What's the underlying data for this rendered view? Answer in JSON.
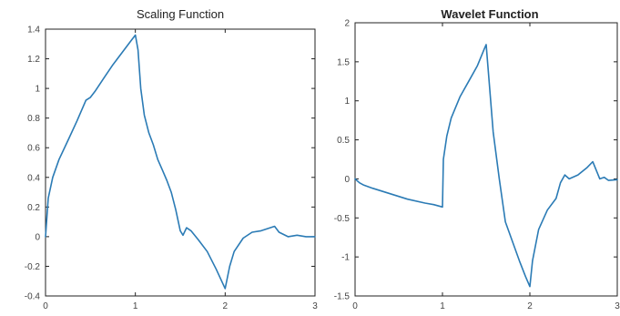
{
  "line_color": "#2b7bb5",
  "chart_data": [
    {
      "type": "line",
      "title": "Scaling Function",
      "xlabel": "",
      "ylabel": "",
      "xlim": [
        0,
        3
      ],
      "ylim": [
        -0.4,
        1.4
      ],
      "xticks": [
        0,
        1,
        2,
        3
      ],
      "xtick_labels": [
        "0",
        "1",
        "2",
        "3"
      ],
      "yticks": [
        -0.4,
        -0.2,
        0,
        0.2,
        0.4,
        0.6,
        0.8,
        1,
        1.2,
        1.4
      ],
      "ytick_labels": [
        "-0.4",
        "-0.2",
        "0",
        "0.2",
        "0.4",
        "0.6",
        "0.8",
        "1",
        "1.2",
        "1.4"
      ],
      "grid": false,
      "series": [
        {
          "x": [
            0,
            0.03,
            0.08,
            0.15,
            0.25,
            0.35,
            0.45,
            0.5,
            0.55,
            0.65,
            0.75,
            0.85,
            0.95,
            1.0,
            1.03,
            1.06,
            1.1,
            1.15,
            1.2,
            1.25,
            1.3,
            1.35,
            1.4,
            1.45,
            1.5,
            1.53,
            1.57,
            1.62,
            1.7,
            1.8,
            1.9,
            2.0,
            2.05,
            2.1,
            2.2,
            2.3,
            2.4,
            2.5,
            2.55,
            2.6,
            2.7,
            2.8,
            2.9,
            3.0
          ],
          "y": [
            0.0,
            0.26,
            0.4,
            0.52,
            0.65,
            0.78,
            0.92,
            0.94,
            0.98,
            1.07,
            1.16,
            1.24,
            1.32,
            1.36,
            1.26,
            1.0,
            0.82,
            0.7,
            0.62,
            0.52,
            0.45,
            0.38,
            0.3,
            0.18,
            0.04,
            0.01,
            0.06,
            0.04,
            -0.02,
            -0.1,
            -0.22,
            -0.35,
            -0.2,
            -0.1,
            -0.01,
            0.03,
            0.04,
            0.06,
            0.07,
            0.03,
            0.0,
            0.01,
            0.0,
            0.0
          ]
        }
      ]
    },
    {
      "type": "line",
      "title": "Wavelet Function",
      "xlabel": "",
      "ylabel": "",
      "xlim": [
        0,
        3
      ],
      "ylim": [
        -1.5,
        2
      ],
      "xticks": [
        0,
        1,
        2,
        3
      ],
      "xtick_labels": [
        "0",
        "1",
        "2",
        "3"
      ],
      "yticks": [
        -1.5,
        -1,
        -0.5,
        0,
        0.5,
        1,
        1.5,
        2
      ],
      "ytick_labels": [
        "-1.5",
        "-1",
        "-0.5",
        "0",
        "0.5",
        "1",
        "1.5",
        "2"
      ],
      "grid": false,
      "series": [
        {
          "x": [
            0,
            0.05,
            0.1,
            0.2,
            0.4,
            0.6,
            0.8,
            0.9,
            1.0,
            1.01,
            1.05,
            1.1,
            1.2,
            1.3,
            1.4,
            1.48,
            1.5,
            1.53,
            1.58,
            1.65,
            1.72,
            1.8,
            1.88,
            1.95,
            2.0,
            2.03,
            2.1,
            2.2,
            2.3,
            2.35,
            2.4,
            2.45,
            2.55,
            2.65,
            2.72,
            2.8,
            2.85,
            2.9,
            3.0
          ],
          "y": [
            0.0,
            -0.05,
            -0.08,
            -0.12,
            -0.19,
            -0.26,
            -0.31,
            -0.33,
            -0.36,
            0.25,
            0.55,
            0.78,
            1.05,
            1.25,
            1.45,
            1.67,
            1.72,
            1.3,
            0.6,
            0.0,
            -0.55,
            -0.8,
            -1.05,
            -1.25,
            -1.38,
            -1.05,
            -0.65,
            -0.4,
            -0.25,
            -0.05,
            0.05,
            0.0,
            0.05,
            0.14,
            0.22,
            0.0,
            0.02,
            -0.02,
            -0.01
          ]
        }
      ]
    }
  ]
}
